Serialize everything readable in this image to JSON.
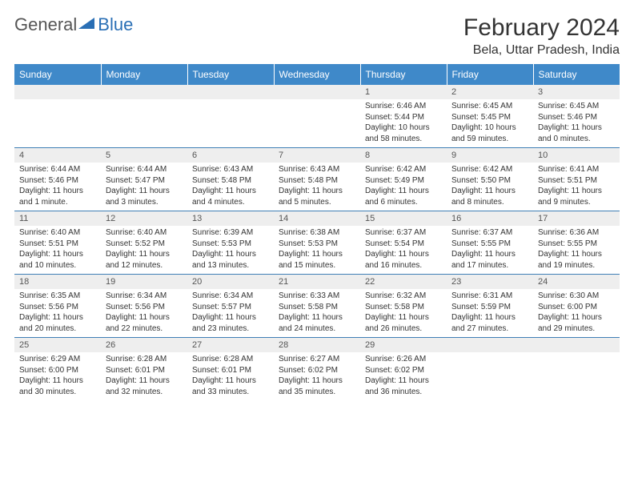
{
  "logo": {
    "text1": "General",
    "text2": "Blue"
  },
  "title": "February 2024",
  "location": "Bela, Uttar Pradesh, India",
  "colors": {
    "header_bg": "#3f89c9",
    "header_text": "#ffffff",
    "daynum_bg": "#eeeeee",
    "border": "#3f7fb5",
    "logo_accent": "#2a6fb5",
    "body_text": "#333333"
  },
  "dayHeaders": [
    "Sunday",
    "Monday",
    "Tuesday",
    "Wednesday",
    "Thursday",
    "Friday",
    "Saturday"
  ],
  "weeks": [
    [
      null,
      null,
      null,
      null,
      {
        "n": "1",
        "sunrise": "6:46 AM",
        "sunset": "5:44 PM",
        "daylight": "10 hours and 58 minutes."
      },
      {
        "n": "2",
        "sunrise": "6:45 AM",
        "sunset": "5:45 PM",
        "daylight": "10 hours and 59 minutes."
      },
      {
        "n": "3",
        "sunrise": "6:45 AM",
        "sunset": "5:46 PM",
        "daylight": "11 hours and 0 minutes."
      }
    ],
    [
      {
        "n": "4",
        "sunrise": "6:44 AM",
        "sunset": "5:46 PM",
        "daylight": "11 hours and 1 minute."
      },
      {
        "n": "5",
        "sunrise": "6:44 AM",
        "sunset": "5:47 PM",
        "daylight": "11 hours and 3 minutes."
      },
      {
        "n": "6",
        "sunrise": "6:43 AM",
        "sunset": "5:48 PM",
        "daylight": "11 hours and 4 minutes."
      },
      {
        "n": "7",
        "sunrise": "6:43 AM",
        "sunset": "5:48 PM",
        "daylight": "11 hours and 5 minutes."
      },
      {
        "n": "8",
        "sunrise": "6:42 AM",
        "sunset": "5:49 PM",
        "daylight": "11 hours and 6 minutes."
      },
      {
        "n": "9",
        "sunrise": "6:42 AM",
        "sunset": "5:50 PM",
        "daylight": "11 hours and 8 minutes."
      },
      {
        "n": "10",
        "sunrise": "6:41 AM",
        "sunset": "5:51 PM",
        "daylight": "11 hours and 9 minutes."
      }
    ],
    [
      {
        "n": "11",
        "sunrise": "6:40 AM",
        "sunset": "5:51 PM",
        "daylight": "11 hours and 10 minutes."
      },
      {
        "n": "12",
        "sunrise": "6:40 AM",
        "sunset": "5:52 PM",
        "daylight": "11 hours and 12 minutes."
      },
      {
        "n": "13",
        "sunrise": "6:39 AM",
        "sunset": "5:53 PM",
        "daylight": "11 hours and 13 minutes."
      },
      {
        "n": "14",
        "sunrise": "6:38 AM",
        "sunset": "5:53 PM",
        "daylight": "11 hours and 15 minutes."
      },
      {
        "n": "15",
        "sunrise": "6:37 AM",
        "sunset": "5:54 PM",
        "daylight": "11 hours and 16 minutes."
      },
      {
        "n": "16",
        "sunrise": "6:37 AM",
        "sunset": "5:55 PM",
        "daylight": "11 hours and 17 minutes."
      },
      {
        "n": "17",
        "sunrise": "6:36 AM",
        "sunset": "5:55 PM",
        "daylight": "11 hours and 19 minutes."
      }
    ],
    [
      {
        "n": "18",
        "sunrise": "6:35 AM",
        "sunset": "5:56 PM",
        "daylight": "11 hours and 20 minutes."
      },
      {
        "n": "19",
        "sunrise": "6:34 AM",
        "sunset": "5:56 PM",
        "daylight": "11 hours and 22 minutes."
      },
      {
        "n": "20",
        "sunrise": "6:34 AM",
        "sunset": "5:57 PM",
        "daylight": "11 hours and 23 minutes."
      },
      {
        "n": "21",
        "sunrise": "6:33 AM",
        "sunset": "5:58 PM",
        "daylight": "11 hours and 24 minutes."
      },
      {
        "n": "22",
        "sunrise": "6:32 AM",
        "sunset": "5:58 PM",
        "daylight": "11 hours and 26 minutes."
      },
      {
        "n": "23",
        "sunrise": "6:31 AM",
        "sunset": "5:59 PM",
        "daylight": "11 hours and 27 minutes."
      },
      {
        "n": "24",
        "sunrise": "6:30 AM",
        "sunset": "6:00 PM",
        "daylight": "11 hours and 29 minutes."
      }
    ],
    [
      {
        "n": "25",
        "sunrise": "6:29 AM",
        "sunset": "6:00 PM",
        "daylight": "11 hours and 30 minutes."
      },
      {
        "n": "26",
        "sunrise": "6:28 AM",
        "sunset": "6:01 PM",
        "daylight": "11 hours and 32 minutes."
      },
      {
        "n": "27",
        "sunrise": "6:28 AM",
        "sunset": "6:01 PM",
        "daylight": "11 hours and 33 minutes."
      },
      {
        "n": "28",
        "sunrise": "6:27 AM",
        "sunset": "6:02 PM",
        "daylight": "11 hours and 35 minutes."
      },
      {
        "n": "29",
        "sunrise": "6:26 AM",
        "sunset": "6:02 PM",
        "daylight": "11 hours and 36 minutes."
      },
      null,
      null
    ]
  ]
}
